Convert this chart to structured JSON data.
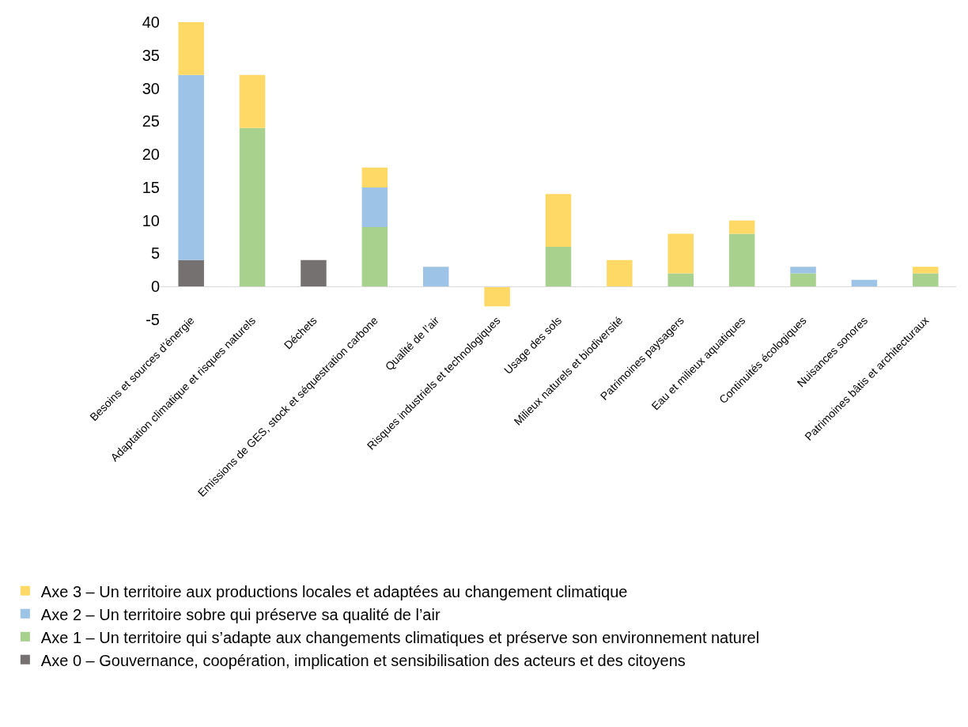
{
  "chart_data": {
    "type": "bar",
    "stacked": true,
    "categories": [
      "Besoins et sources d’énergie",
      "Adaptation climatique et risques naturels",
      "Déchets",
      "Emissions de GES, stock et séquestration carbone",
      "Qualité de l’air",
      "Risques industriels et technologiques",
      "Usage des sols",
      "Milieux naturels et biodiversité",
      "Patrimoines paysagers",
      "Eau et milieux aquatiques",
      "Continuités écologiques",
      "Nuisances sonores",
      "Patrimoines bâtis et architecturaux"
    ],
    "series": [
      {
        "name": "Axe 0 – Gouvernance, coopération, implication et sensibilisation des acteurs et des citoyens",
        "color": "#767171",
        "values": [
          4,
          null,
          4,
          null,
          null,
          null,
          null,
          null,
          null,
          null,
          null,
          null,
          null
        ]
      },
      {
        "name": "Axe 1 – Un territoire qui s’adapte aux changements climatiques et préserve son environnement naturel",
        "color": "#a9d18e",
        "values": [
          null,
          24,
          null,
          9,
          null,
          null,
          6,
          null,
          2,
          8,
          2,
          null,
          2
        ]
      },
      {
        "name": "Axe 2 – Un territoire sobre qui préserve sa qualité de l’air",
        "color": "#9dc3e6",
        "values": [
          28,
          null,
          null,
          6,
          3,
          null,
          null,
          null,
          null,
          null,
          1,
          1,
          null
        ]
      },
      {
        "name": "Axe 3 – Un territoire aux productions locales et adaptées au changement climatique",
        "color": "#ffd966",
        "values": [
          8,
          8,
          null,
          3,
          null,
          -3,
          8,
          4,
          6,
          2,
          null,
          null,
          1
        ]
      }
    ],
    "ylim": [
      -5,
      40
    ],
    "yticks": [
      -5,
      0,
      5,
      10,
      15,
      20,
      25,
      30,
      35,
      40
    ],
    "grid": false,
    "legend": "bottom"
  }
}
